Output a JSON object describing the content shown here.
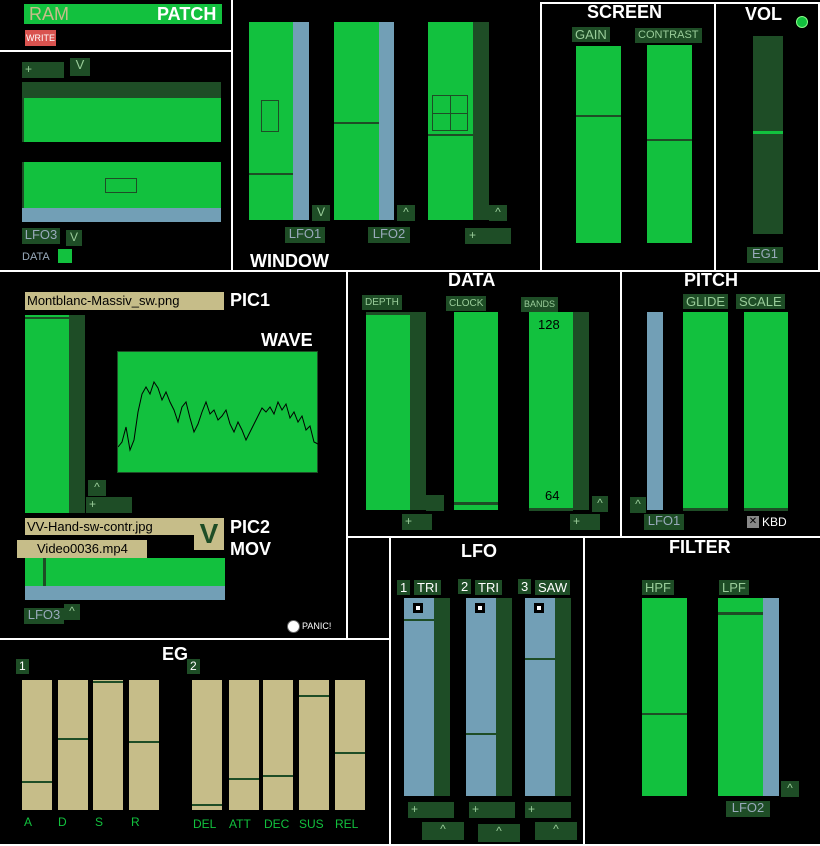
{
  "patch": {
    "ram_label": "RAM",
    "patch_label": "PATCH",
    "write_label": "WRITE",
    "plus": "+",
    "v": "V",
    "lfo3_label": "LFO3",
    "data_label": "DATA"
  },
  "window": {
    "title": "WINDOW",
    "lfo1_label": "LFO1",
    "lfo2_label": "LFO2",
    "v": "V",
    "caret": "^",
    "plus": "+"
  },
  "screen": {
    "title": "SCREEN",
    "gain_label": "GAIN",
    "contrast_label": "CONTRAST"
  },
  "vol": {
    "title": "VOL",
    "eg1_label": "EG1"
  },
  "pics": {
    "pic1_file": "Montblanc-Massiv_sw.png",
    "pic1_label": "PIC1",
    "wave_label": "WAVE",
    "pic2_file": "VV-Hand-sw-contr.jpg",
    "pic2_label": "PIC2",
    "v": "V",
    "mov_file": "Video0036.mp4",
    "mov_label": "MOV",
    "lfo3_label": "LFO3",
    "caret": "^",
    "plus": "+",
    "panic_label": "PANIC!"
  },
  "data": {
    "title": "DATA",
    "depth_label": "DEPTH",
    "clock_label": "CLOCK",
    "bands_label": "BANDS",
    "bands_max": "128",
    "bands_min": "64",
    "plus": "+",
    "caret": "^"
  },
  "pitch": {
    "title": "PITCH",
    "glide_label": "GLIDE",
    "scale_label": "SCALE",
    "lfo1_label": "LFO1",
    "kbd_label": "KBD",
    "caret": "^"
  },
  "lfo": {
    "title": "LFO",
    "items": [
      {
        "num": "1",
        "wave": "TRI"
      },
      {
        "num": "2",
        "wave": "TRI"
      },
      {
        "num": "3",
        "wave": "SAW"
      }
    ],
    "plus": "+",
    "caret": "^"
  },
  "filter": {
    "title": "FILTER",
    "hpf_label": "HPF",
    "lpf_label": "LPF",
    "lfo2_label": "LFO2",
    "caret": "^"
  },
  "eg": {
    "title": "EG",
    "eg1_num": "1",
    "eg2_num": "2",
    "eg1_labels": [
      "A",
      "D",
      "S",
      "R"
    ],
    "eg2_labels": [
      "DEL",
      "ATT",
      "DEC",
      "SUS",
      "REL"
    ]
  }
}
